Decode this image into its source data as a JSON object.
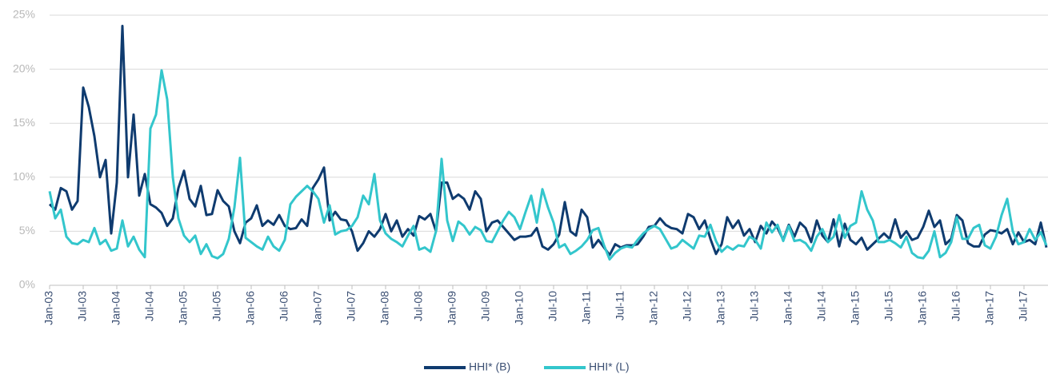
{
  "chart_data": {
    "type": "line",
    "categories": [
      "Jan-03",
      null,
      null,
      null,
      null,
      null,
      "Jul-03",
      null,
      null,
      null,
      null,
      null,
      "Jan-04",
      null,
      null,
      null,
      null,
      null,
      "Jul-04",
      null,
      null,
      null,
      null,
      null,
      "Jan-05",
      null,
      null,
      null,
      null,
      null,
      "Jul-05",
      null,
      null,
      null,
      null,
      null,
      "Jan-06",
      null,
      null,
      null,
      null,
      null,
      "Jul-06",
      null,
      null,
      null,
      null,
      null,
      "Jan-07",
      null,
      null,
      null,
      null,
      null,
      "Jul-07",
      null,
      null,
      null,
      null,
      null,
      "Jan-08",
      null,
      null,
      null,
      null,
      null,
      "Jul-08",
      null,
      null,
      null,
      null,
      null,
      "Jan-09",
      null,
      null,
      null,
      null,
      null,
      "Jul-09",
      null,
      null,
      null,
      null,
      null,
      "Jan-10",
      null,
      null,
      null,
      null,
      null,
      "Jul-10",
      null,
      null,
      null,
      null,
      null,
      "Jan-11",
      null,
      null,
      null,
      null,
      null,
      "Jul-11",
      null,
      null,
      null,
      null,
      null,
      "Jan-12",
      null,
      null,
      null,
      null,
      null,
      "Jul-12",
      null,
      null,
      null,
      null,
      null,
      "Jan-13",
      null,
      null,
      null,
      null,
      null,
      "Jul-13",
      null,
      null,
      null,
      null,
      null,
      "Jan-14",
      null,
      null,
      null,
      null,
      null,
      "Jul-14",
      null,
      null,
      null,
      null,
      null,
      "Jan-15",
      null,
      null,
      null,
      null,
      null,
      "Jul-15",
      null,
      null,
      null,
      null,
      null,
      "Jan-16",
      null,
      null,
      null,
      null,
      null,
      "Jul-16",
      null,
      null,
      null,
      null,
      null,
      "Jan-17",
      null,
      null,
      null,
      null,
      null,
      "Jul-17",
      null,
      null,
      null,
      null
    ],
    "series": [
      {
        "name": "HHI* (B)",
        "color": "#0f3b6f",
        "values": [
          7.5,
          7.0,
          9.0,
          8.7,
          7.0,
          7.8,
          18.3,
          16.5,
          13.8,
          10.0,
          11.6,
          4.8,
          9.5,
          24,
          10,
          15.8,
          8.3,
          10.3,
          7.5,
          7.2,
          6.7,
          5.5,
          6.2,
          9.0,
          10.6,
          8.0,
          7.3,
          9.2,
          6.5,
          6.6,
          8.8,
          7.8,
          7.3,
          5.0,
          3.9,
          5.8,
          6.2,
          7.4,
          5.5,
          6.0,
          5.6,
          6.5,
          5.5,
          5.2,
          5.3,
          6.1,
          5.5,
          9.0,
          9.8,
          10.9,
          6.0,
          6.8,
          6.1,
          6.0,
          5.0,
          3.2,
          3.9,
          5.0,
          4.5,
          5.2,
          6.6,
          5.0,
          6.0,
          4.5,
          5.2,
          4.6,
          6.4,
          6.1,
          6.6,
          5.0,
          9.5,
          9.5,
          8.0,
          8.4,
          8.0,
          7.0,
          8.7,
          8.0,
          5.0,
          5.8,
          6.0,
          5.4,
          4.8,
          4.2,
          4.5,
          4.5,
          4.6,
          5.3,
          3.6,
          3.3,
          3.8,
          4.7,
          7.7,
          5.0,
          4.6,
          7.0,
          6.3,
          3.5,
          4.2,
          3.5,
          2.8,
          3.8,
          3.5,
          3.7,
          3.7,
          3.8,
          4.5,
          5.4,
          5.5,
          6.2,
          5.6,
          5.3,
          5.2,
          4.8,
          6.6,
          6.3,
          5.2,
          6.0,
          4.3,
          2.9,
          3.8,
          6.3,
          5.3,
          6.0,
          4.6,
          5.2,
          4.0,
          5.5,
          4.8,
          5.9,
          5.3,
          4.2,
          5.6,
          4.5,
          5.8,
          5.3,
          4.0,
          6.0,
          4.6,
          4.0,
          6.1,
          3.6,
          5.7,
          4.2,
          3.8,
          4.4,
          3.3,
          3.8,
          4.3,
          4.8,
          4.3,
          6.1,
          4.4,
          5.0,
          4.2,
          4.4,
          5.4,
          6.9,
          5.4,
          6.0,
          3.8,
          4.3,
          6.5,
          6.0,
          3.9,
          3.6,
          3.6,
          4.7,
          5.1,
          5.0,
          4.8,
          5.2,
          3.8,
          4.9,
          4.0,
          4.2,
          3.8,
          5.8,
          3.5
        ]
      },
      {
        "name": "HHI* (L)",
        "color": "#33c6cc",
        "values": [
          8.7,
          6.2,
          7.0,
          4.5,
          3.9,
          3.8,
          4.2,
          4.0,
          5.3,
          3.8,
          4.2,
          3.2,
          3.4,
          6.0,
          3.6,
          4.5,
          3.3,
          2.6,
          14.5,
          15.8,
          19.9,
          17.2,
          10.0,
          6.2,
          4.6,
          4.0,
          4.6,
          2.9,
          3.8,
          2.7,
          2.5,
          2.9,
          4.3,
          7.2,
          11.8,
          4.4,
          4.0,
          3.6,
          3.3,
          4.5,
          3.6,
          3.2,
          4.2,
          7.5,
          8.2,
          8.7,
          9.2,
          8.7,
          8.0,
          5.8,
          7.4,
          4.7,
          5.0,
          5.1,
          5.5,
          6.3,
          8.3,
          7.5,
          10.3,
          6.0,
          4.8,
          4.3,
          4.0,
          3.6,
          4.6,
          5.5,
          3.3,
          3.5,
          3.1,
          5.0,
          11.7,
          6.0,
          4.1,
          5.9,
          5.5,
          4.7,
          5.4,
          5.1,
          4.1,
          4.0,
          5.0,
          6.0,
          6.8,
          6.3,
          5.2,
          6.8,
          8.3,
          5.8,
          8.9,
          7.2,
          5.8,
          3.5,
          3.8,
          2.9,
          3.2,
          3.6,
          4.2,
          5.1,
          5.3,
          3.7,
          2.4,
          3.0,
          3.4,
          3.6,
          3.5,
          4.2,
          4.8,
          5.2,
          5.5,
          5.2,
          4.3,
          3.4,
          3.6,
          4.2,
          3.8,
          3.4,
          4.6,
          4.5,
          5.6,
          4.1,
          3.1,
          3.6,
          3.3,
          3.7,
          3.6,
          4.5,
          4.2,
          3.4,
          5.8,
          4.9,
          5.6,
          4.1,
          5.5,
          4.1,
          4.2,
          3.9,
          3.2,
          4.5,
          5.2,
          4.0,
          4.5,
          6.5,
          4.4,
          5.5,
          5.8,
          8.7,
          7.0,
          6.0,
          4.0,
          4.0,
          4.2,
          3.9,
          3.5,
          4.5,
          3.0,
          2.6,
          2.5,
          3.2,
          5.0,
          2.6,
          3.0,
          4.0,
          6.3,
          4.3,
          4.3,
          5.3,
          5.6,
          3.7,
          3.4,
          4.5,
          6.5,
          8.0,
          5.0,
          3.8,
          4.0,
          5.2,
          4.2,
          4.9,
          3.7
        ]
      }
    ],
    "ylim": [
      0,
      25
    ],
    "yticks": [
      {
        "value": 0,
        "label": "0%"
      },
      {
        "value": 5,
        "label": "5%"
      },
      {
        "value": 10,
        "label": "10%"
      },
      {
        "value": 15,
        "label": "15%"
      },
      {
        "value": 20,
        "label": "20%"
      },
      {
        "value": 25,
        "label": "25%"
      }
    ],
    "grid": true,
    "legend": "bottom"
  }
}
